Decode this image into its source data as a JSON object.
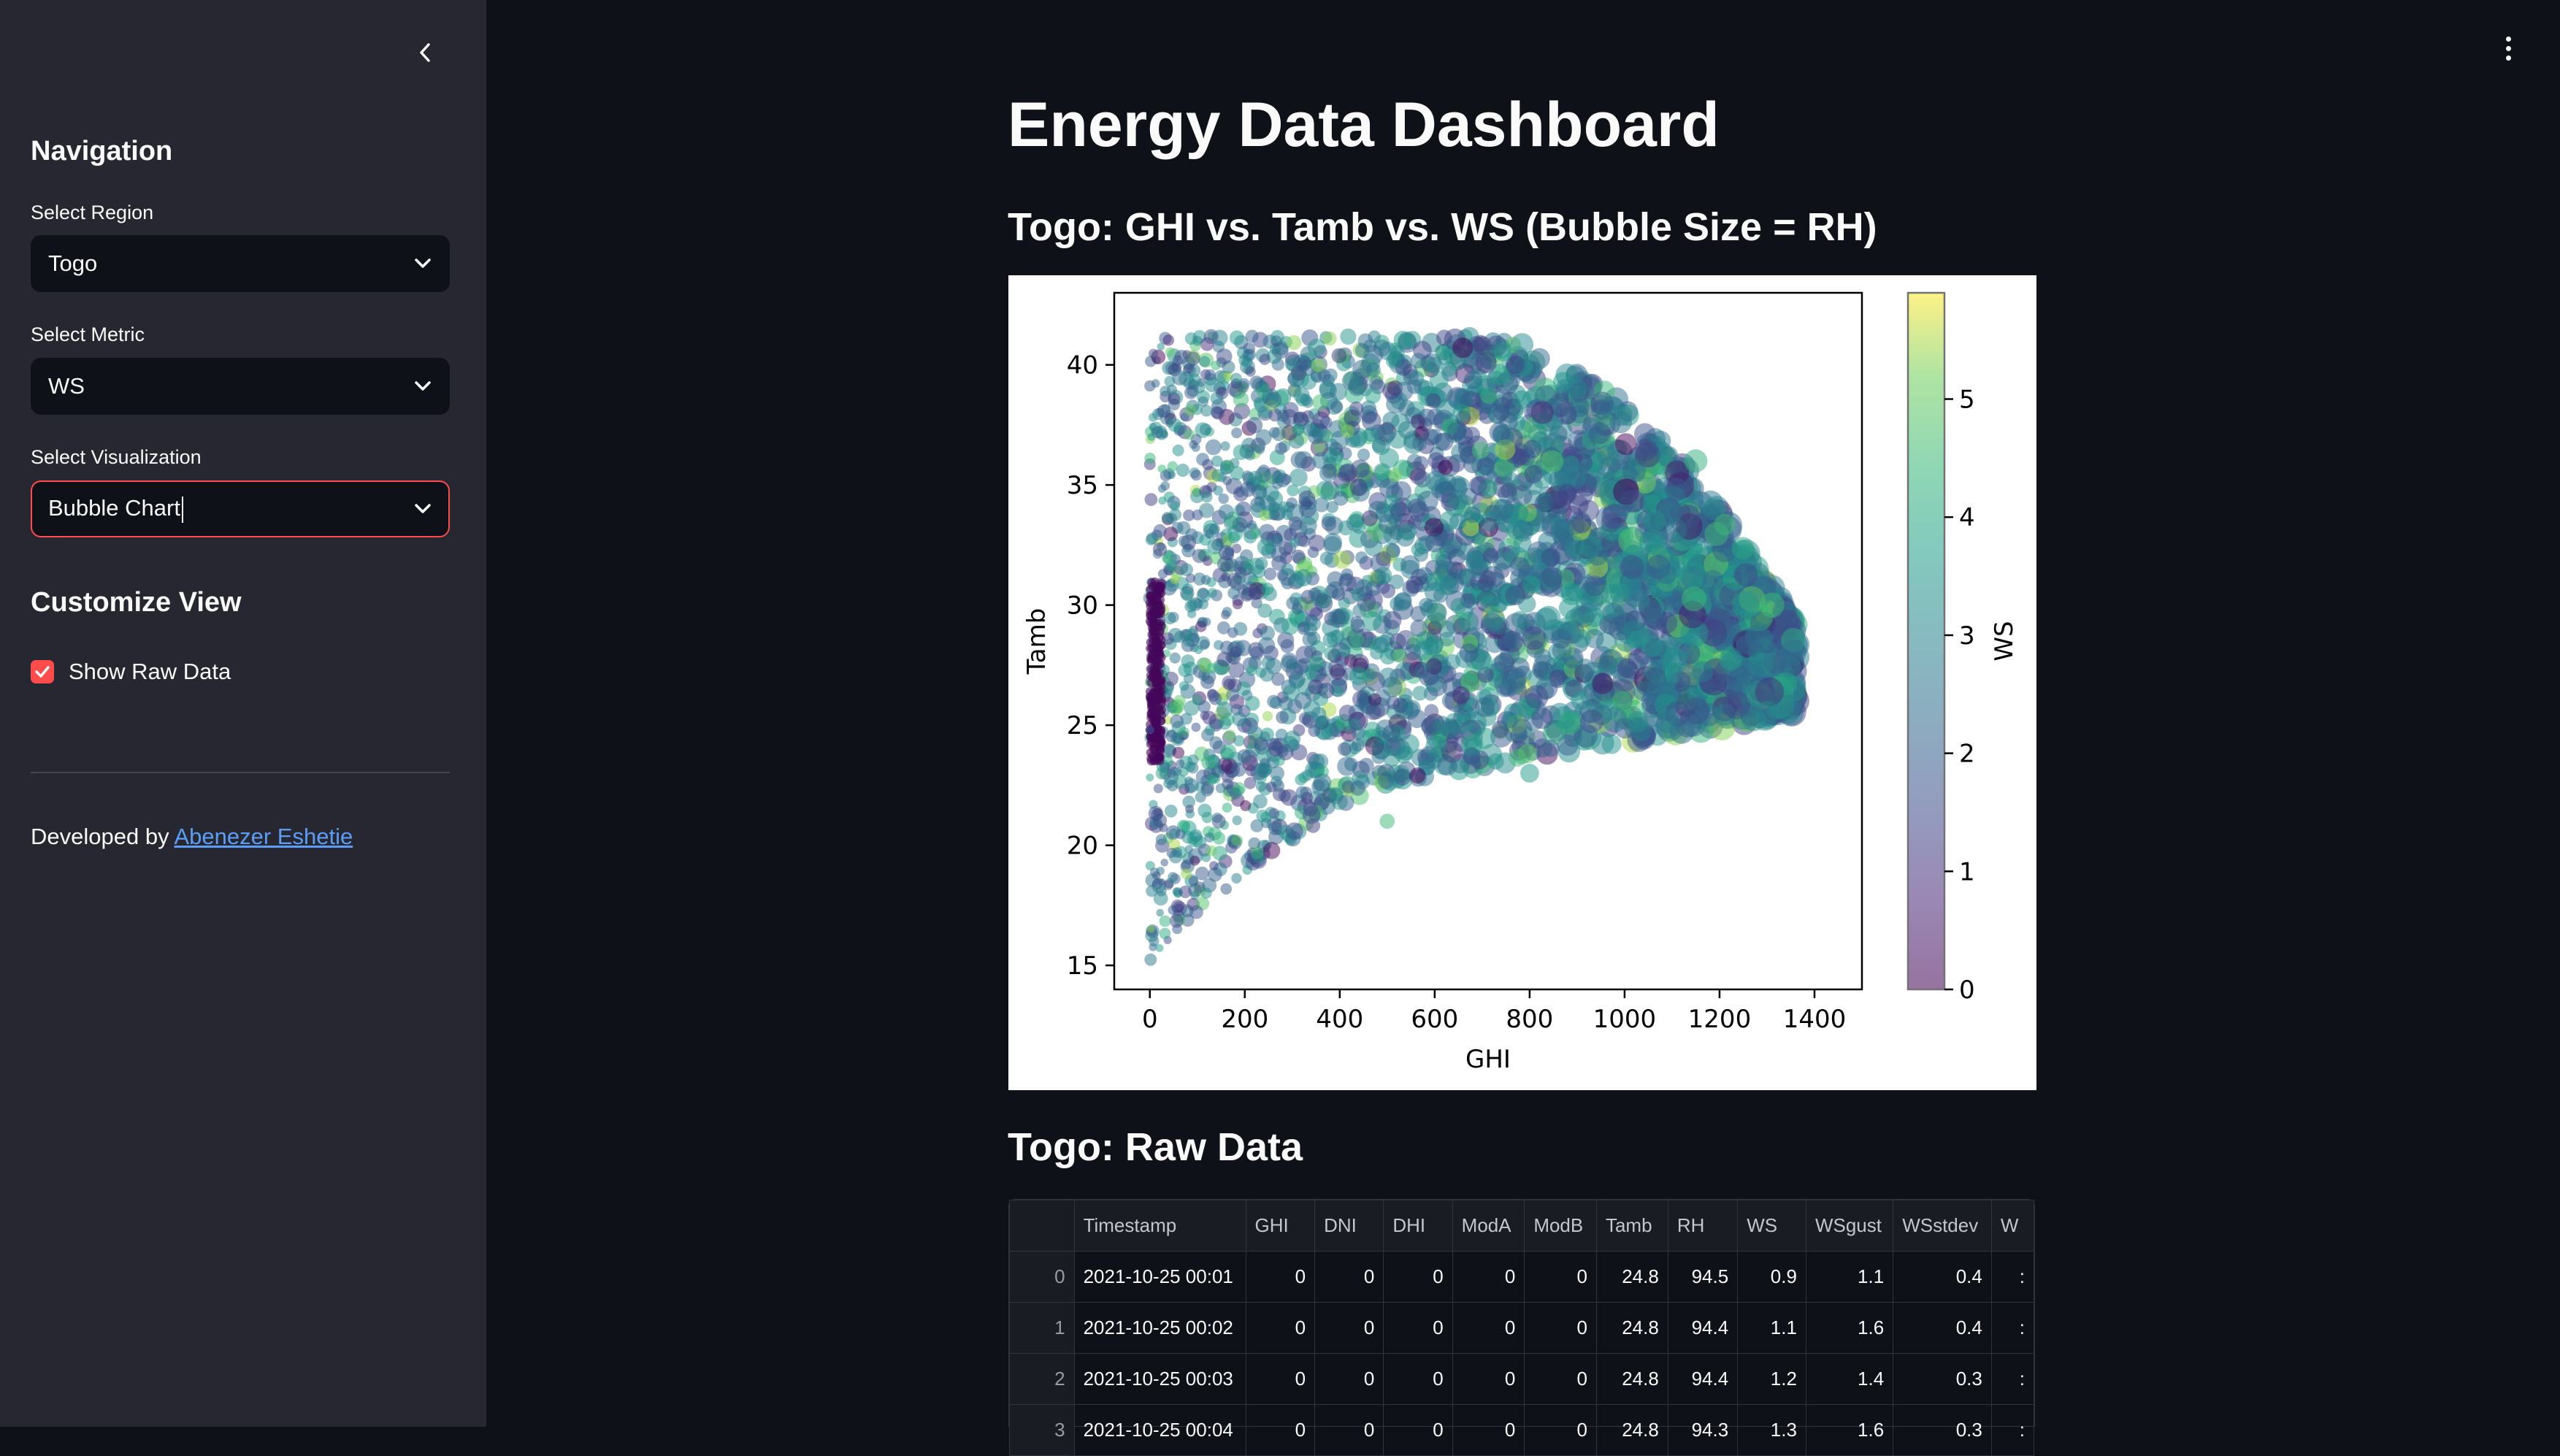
{
  "sidebar": {
    "nav_heading": "Navigation",
    "region_label": "Select Region",
    "region_value": "Togo",
    "metric_label": "Select Metric",
    "metric_value": "WS",
    "viz_label": "Select Visualization",
    "viz_value": "Bubble Chart",
    "customize_heading": "Customize View",
    "show_raw_label": "Show Raw Data",
    "show_raw_checked": true,
    "developed_by": "Developed by",
    "author": "Abenezer Eshetie"
  },
  "main": {
    "page_title": "Energy Data Dashboard",
    "chart_title": "Togo: GHI vs. Tamb vs. WS (Bubble Size = RH)",
    "raw_title": "Togo: Raw Data"
  },
  "chart_data": {
    "type": "scatter",
    "title": "",
    "xlabel": "GHI",
    "ylabel": "Tamb",
    "colorbar_label": "WS",
    "colormap": "viridis",
    "xlim": [
      -75,
      1500
    ],
    "ylim": [
      14,
      43
    ],
    "clim": [
      0,
      5.9
    ],
    "xticks": [
      0,
      200,
      400,
      600,
      800,
      1000,
      1200,
      1400
    ],
    "yticks": [
      15,
      20,
      25,
      30,
      35,
      40
    ],
    "cticks": [
      0,
      1,
      2,
      3,
      4,
      5
    ],
    "alpha": 0.5,
    "points": [
      {
        "x": 0,
        "y": 24.8,
        "c": 0.9
      },
      {
        "x": 0,
        "y": 24.8,
        "c": 1.1
      },
      {
        "x": 0,
        "y": 24.8,
        "c": 1.2
      },
      {
        "x": 1300,
        "y": 25.5,
        "c": 3.0
      },
      {
        "x": 1310,
        "y": 30,
        "c": 4.5
      },
      {
        "x": 1150,
        "y": 36,
        "c": 4.2
      },
      {
        "x": 100,
        "y": 41,
        "c": 3.0
      },
      {
        "x": 300,
        "y": 40,
        "c": 2.8
      },
      {
        "x": 600,
        "y": 40,
        "c": 3.2
      },
      {
        "x": 900,
        "y": 39,
        "c": 3.0
      },
      {
        "x": 500,
        "y": 21,
        "c": 4.5
      },
      {
        "x": 800,
        "y": 23,
        "c": 3.5
      }
    ]
  },
  "table": {
    "columns": [
      "",
      "Timestamp",
      "GHI",
      "DNI",
      "DHI",
      "ModA",
      "ModB",
      "Tamb",
      "RH",
      "WS",
      "WSgust",
      "WSstdev",
      "W"
    ],
    "rows": [
      [
        "0",
        "2021-10-25 00:01",
        "0",
        "0",
        "0",
        "0",
        "0",
        "24.8",
        "94.5",
        "0.9",
        "1.1",
        "0.4",
        ":"
      ],
      [
        "1",
        "2021-10-25 00:02",
        "0",
        "0",
        "0",
        "0",
        "0",
        "24.8",
        "94.4",
        "1.1",
        "1.6",
        "0.4",
        ":"
      ],
      [
        "2",
        "2021-10-25 00:03",
        "0",
        "0",
        "0",
        "0",
        "0",
        "24.8",
        "94.4",
        "1.2",
        "1.4",
        "0.3",
        ":"
      ],
      [
        "3",
        "2021-10-25 00:04",
        "0",
        "0",
        "0",
        "0",
        "0",
        "24.8",
        "94.3",
        "1.3",
        "1.6",
        "0.3",
        ":"
      ]
    ]
  }
}
